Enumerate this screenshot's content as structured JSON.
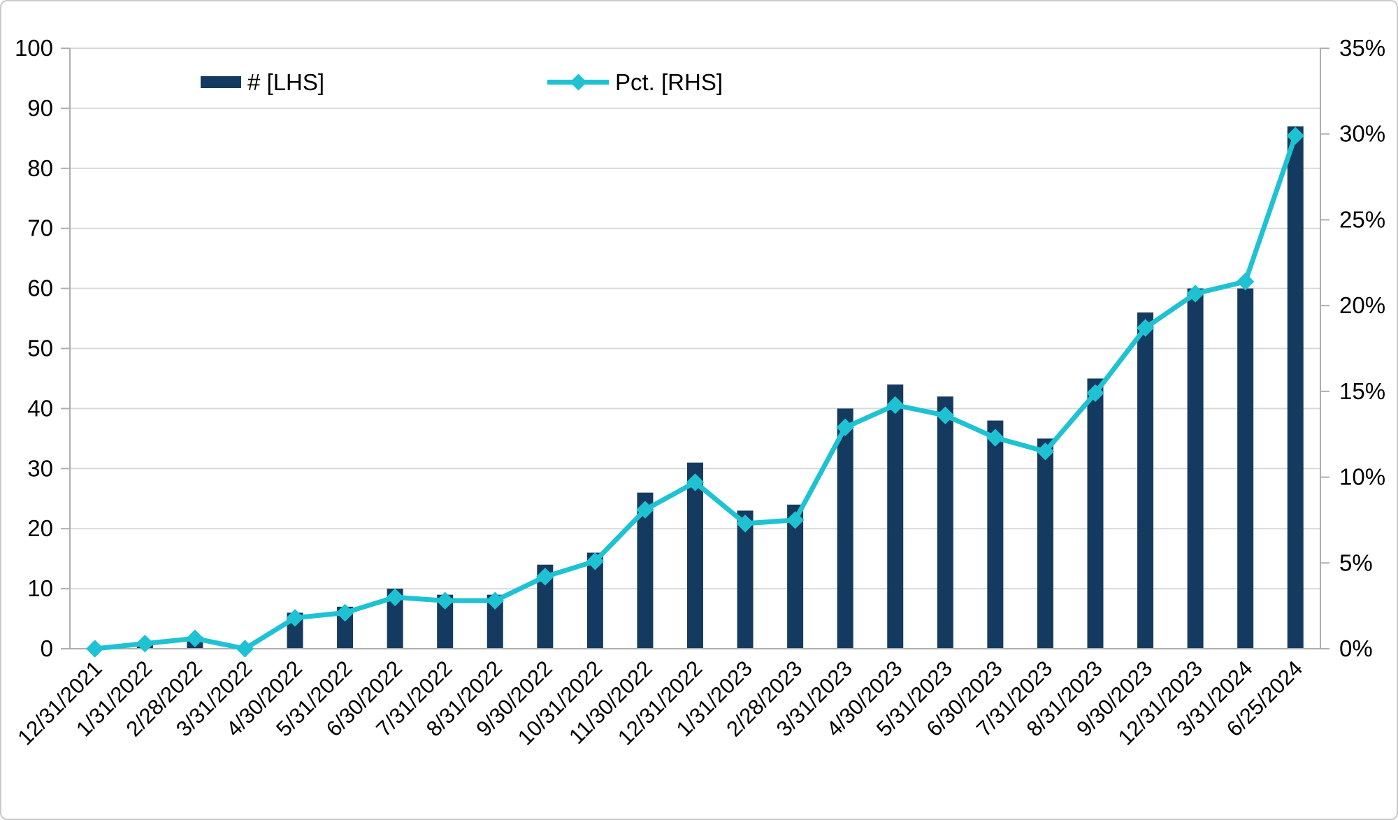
{
  "chart_data": {
    "type": "bar+line-dual-axis",
    "categories": [
      "12/31/2021",
      "1/31/2022",
      "2/28/2022",
      "3/31/2022",
      "4/30/2022",
      "5/31/2022",
      "6/30/2022",
      "7/31/2022",
      "8/31/2022",
      "9/30/2022",
      "10/31/2022",
      "11/30/2022",
      "12/31/2022",
      "1/31/2023",
      "2/28/2023",
      "3/31/2023",
      "4/30/2023",
      "5/31/2023",
      "6/30/2023",
      "7/31/2023",
      "8/31/2023",
      "9/30/2023",
      "12/31/2023",
      "3/31/2024",
      "6/25/2024"
    ],
    "series": [
      {
        "name": "# [LHS]",
        "type": "bar",
        "axis": "left",
        "values": [
          0,
          1,
          2,
          0,
          6,
          7,
          10,
          9,
          9,
          14,
          16,
          26,
          31,
          23,
          24,
          40,
          44,
          42,
          38,
          35,
          45,
          56,
          60,
          60,
          87
        ]
      },
      {
        "name": "Pct. [RHS]",
        "type": "line",
        "axis": "right",
        "marker": "diamond",
        "values": [
          0,
          0.3,
          0.6,
          0,
          1.8,
          2.1,
          3.0,
          2.8,
          2.8,
          4.2,
          5.1,
          8.1,
          9.7,
          7.3,
          7.5,
          12.9,
          14.2,
          13.6,
          12.3,
          11.5,
          14.9,
          18.7,
          20.7,
          21.4,
          29.9
        ]
      }
    ],
    "left_axis": {
      "min": 0,
      "max": 100,
      "step": 10,
      "tick_labels": [
        "0",
        "10",
        "20",
        "30",
        "40",
        "50",
        "60",
        "70",
        "80",
        "90",
        "100"
      ]
    },
    "right_axis": {
      "min": 0,
      "max": 35,
      "step": 5,
      "tick_labels": [
        "0%",
        "5%",
        "10%",
        "15%",
        "20%",
        "25%",
        "30%",
        "35%"
      ]
    },
    "grid": true,
    "legend_position": "top-inside",
    "title": "",
    "xlabel": "",
    "ylabel_left": "",
    "ylabel_right": ""
  },
  "legend": {
    "bar_label": "# [LHS]",
    "line_label": "Pct. [RHS]"
  },
  "colors": {
    "bar": "#143B5F",
    "line": "#1EC2D3",
    "grid": "#d9d9d9",
    "axis": "#aeaeae",
    "text": "#000000",
    "frame_border": "#c9c9c9",
    "background": "#ffffff"
  }
}
